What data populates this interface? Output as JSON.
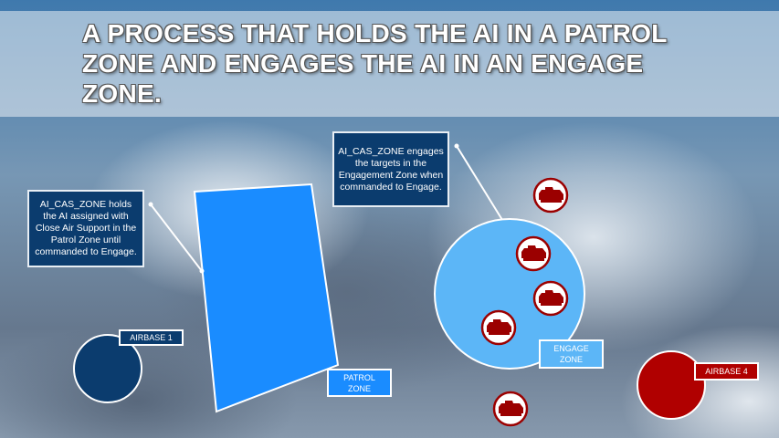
{
  "slide": {
    "title": "A PROCESS THAT HOLDS THE AI IN A PATROL ZONE AND ENGAGES THE AI IN AN ENGAGE ZONE.",
    "callouts": [
      {
        "text": "AI_CAS_ZONE holds the AI assigned with Close Air Support in the Patrol Zone until commanded to Engage."
      },
      {
        "text": "AI_CAS_ZONE engages the targets in the Engagement Zone when commanded to Engage."
      }
    ],
    "labels": {
      "patrol_zone": "PATROL ZONE",
      "engage_zone": "ENGAGE ZONE",
      "airbase_1": "AIRBASE 1",
      "airbase_4": "AIRBASE 4"
    },
    "colors": {
      "patrol": "#1a8cff",
      "engage": "#5cb6f7",
      "blue_airbase": "#0b3c6e",
      "red_airbase": "#b00000",
      "target": "#9b0000"
    },
    "target_icon": "tank-icon"
  }
}
